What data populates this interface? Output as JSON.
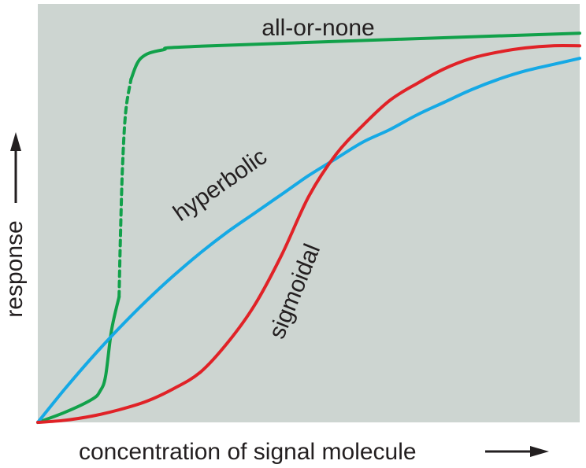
{
  "chart_data": {
    "type": "line",
    "title": "",
    "xlabel": "concentration of signal molecule",
    "ylabel": "response",
    "axis_ticks_shown": false,
    "grid": false,
    "legend": "none (curves labeled directly)",
    "background_color": "#cdd5d1",
    "xlim": [
      0,
      1
    ],
    "ylim": [
      0,
      1
    ],
    "series": [
      {
        "name": "all-or-none",
        "color": "#11a14a",
        "segments": [
          {
            "style": "solid",
            "points": [
              [
                0,
                0
              ],
              [
                0.05,
                0.024
              ],
              [
                0.1,
                0.055
              ],
              [
                0.115,
                0.075
              ],
              [
                0.125,
                0.11
              ],
              [
                0.136,
                0.22
              ],
              [
                0.15,
                0.3
              ]
            ]
          },
          {
            "style": "dashed",
            "points": [
              [
                0.15,
                0.3
              ],
              [
                0.152,
                0.42
              ],
              [
                0.156,
                0.6
              ],
              [
                0.162,
                0.74
              ],
              [
                0.172,
                0.82
              ]
            ]
          },
          {
            "style": "solid",
            "points": [
              [
                0.172,
                0.82
              ],
              [
                0.19,
                0.87
              ],
              [
                0.23,
                0.89
              ],
              [
                0.32,
                0.9
              ],
              [
                1.0,
                0.93
              ]
            ]
          }
        ]
      },
      {
        "name": "hyperbolic",
        "color": "#15a9e5",
        "points": [
          [
            0,
            0
          ],
          [
            0.05,
            0.08
          ],
          [
            0.1,
            0.155
          ],
          [
            0.15,
            0.225
          ],
          [
            0.2,
            0.29
          ],
          [
            0.25,
            0.35
          ],
          [
            0.3,
            0.405
          ],
          [
            0.35,
            0.455
          ],
          [
            0.4,
            0.5
          ],
          [
            0.45,
            0.545
          ],
          [
            0.5,
            0.59
          ],
          [
            0.55,
            0.63
          ],
          [
            0.6,
            0.67
          ],
          [
            0.65,
            0.7
          ],
          [
            0.7,
            0.735
          ],
          [
            0.75,
            0.765
          ],
          [
            0.8,
            0.795
          ],
          [
            0.85,
            0.82
          ],
          [
            0.9,
            0.84
          ],
          [
            0.95,
            0.855
          ],
          [
            1.0,
            0.87
          ]
        ]
      },
      {
        "name": "sigmoidal",
        "color": "#e02227",
        "points": [
          [
            0,
            0
          ],
          [
            0.05,
            0.005
          ],
          [
            0.1,
            0.015
          ],
          [
            0.15,
            0.03
          ],
          [
            0.2,
            0.05
          ],
          [
            0.25,
            0.08
          ],
          [
            0.3,
            0.12
          ],
          [
            0.35,
            0.19
          ],
          [
            0.4,
            0.28
          ],
          [
            0.45,
            0.4
          ],
          [
            0.5,
            0.54
          ],
          [
            0.55,
            0.64
          ],
          [
            0.6,
            0.71
          ],
          [
            0.65,
            0.77
          ],
          [
            0.7,
            0.81
          ],
          [
            0.75,
            0.845
          ],
          [
            0.8,
            0.87
          ],
          [
            0.85,
            0.885
          ],
          [
            0.9,
            0.895
          ],
          [
            0.95,
            0.9
          ],
          [
            1.0,
            0.9
          ]
        ]
      }
    ]
  }
}
